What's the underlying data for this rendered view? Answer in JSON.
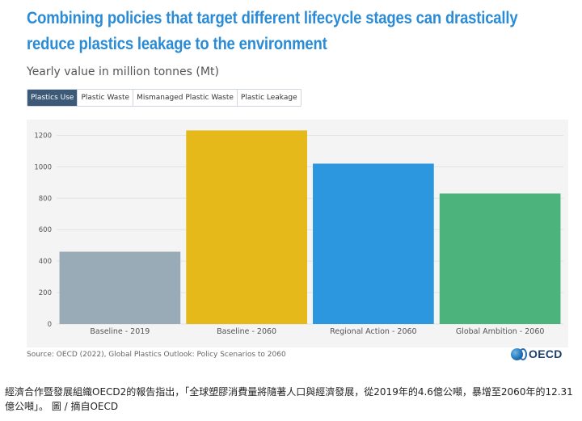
{
  "header": {
    "title": "Combining policies that target different lifecycle stages can drastically reduce plastics leakage to the environment",
    "subtitle": "Yearly value in million tonnes (Mt)"
  },
  "tabs": [
    {
      "label": "Plastics Use",
      "active": true
    },
    {
      "label": "Plastic Waste",
      "active": false
    },
    {
      "label": "Mismanaged Plastic Waste",
      "active": false
    },
    {
      "label": "Plastic Leakage",
      "active": false
    }
  ],
  "chart_data": {
    "type": "bar",
    "categories": [
      "Baseline - 2019",
      "Baseline - 2060",
      "Regional Action - 2060",
      "Global Ambition - 2060"
    ],
    "values": [
      460,
      1231,
      1020,
      830
    ],
    "colors": [
      "#9aabb8",
      "#e5b919",
      "#2c97de",
      "#4db37d"
    ],
    "ylim": [
      0,
      1300
    ],
    "yticks": [
      0,
      200,
      400,
      600,
      800,
      1000,
      1200
    ],
    "ytick_labels": [
      "0",
      "200",
      "400",
      "600",
      "800",
      "1000",
      "1200"
    ],
    "grid": true,
    "background": "#f4f4f4"
  },
  "footer": {
    "source": "Source: OECD (2022), Global Plastics Outlook: Policy Scenarios to 2060",
    "logo_text": "OECD",
    "logo_icon": "oecd-globe-icon"
  },
  "caption": "經濟合作暨發展組織OECD2的報告指出，「全球塑膠消費量將隨著人口與經濟發展，從2019年的4.6億公噸，暴增至2060年的12.31億公噸」。 圖 / 摘自OECD"
}
